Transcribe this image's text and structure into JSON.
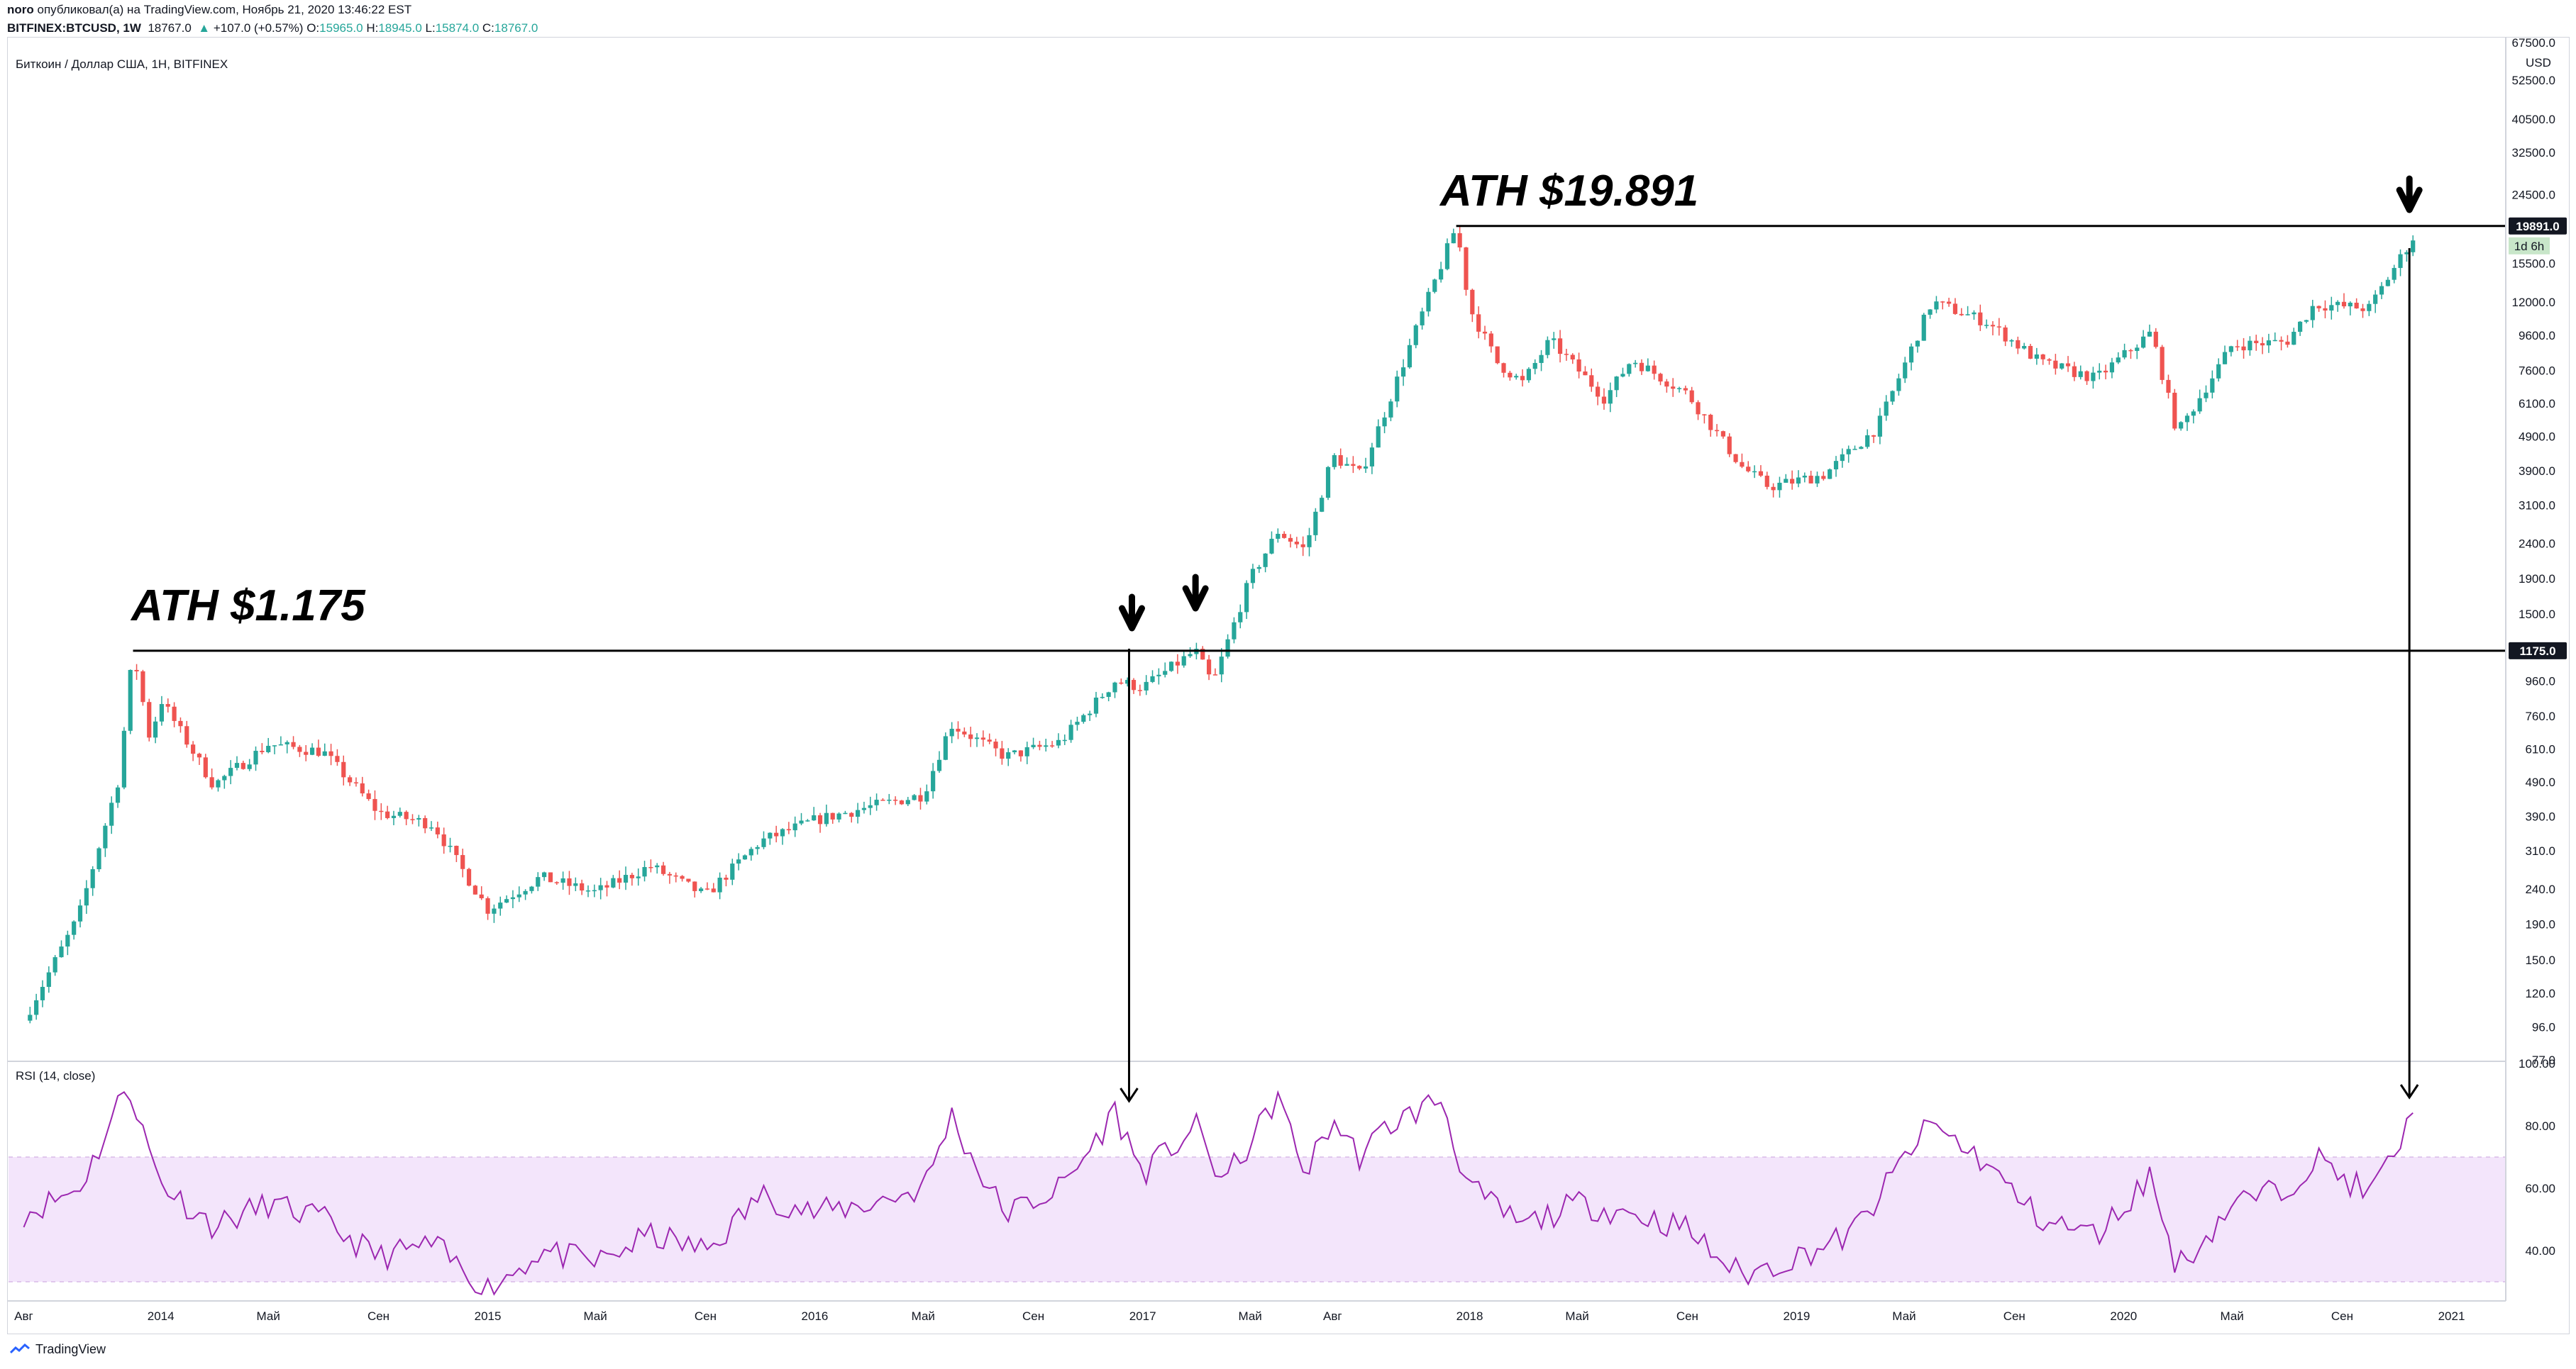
{
  "header": {
    "author": "noro",
    "published_text": "опубликовал(а) на TradingView.com, Ноябрь 21, 2020 13:46:22 EST",
    "symbol": "BITFINEX:BTCUSD, 1W",
    "last": "18767.0",
    "change": "+107.0 (+0.57%)",
    "o_label": "O:",
    "o": "15965.0",
    "h_label": "H:",
    "h": "18945.0",
    "l_label": "L:",
    "l": "15874.0",
    "c_label": "C:",
    "c": "18767.0"
  },
  "footer": {
    "logo_text": "TradingView"
  },
  "colors": {
    "up": "#26a69a",
    "down": "#ef5350",
    "rsi": "#9c27b0",
    "rsi_band": "#f3e5fb",
    "line": "#000000"
  },
  "chart_data": [
    {
      "type": "candlestick",
      "title": "Биткоин / Доллар США, 1Н, BITFINEX",
      "currency": "USD",
      "scale": "log",
      "ylim": [
        77,
        67500
      ],
      "price_ticks": [
        "67500.0",
        "52500.0",
        "40500.0",
        "32500.0",
        "24500.0",
        "15500.0",
        "12000.0",
        "9600.0",
        "7600.0",
        "6100.0",
        "4900.0",
        "3900.0",
        "3100.0",
        "2400.0",
        "1900.0",
        "1500.0",
        "960.0",
        "760.0",
        "610.0",
        "490.0",
        "390.0",
        "310.0",
        "240.0",
        "190.0",
        "150.0",
        "120.0",
        "96.0",
        "77.0"
      ],
      "x_ticks": [
        "Авг",
        "2014",
        "Май",
        "Сен",
        "2015",
        "Май",
        "Сен",
        "2016",
        "Май",
        "Сен",
        "2017",
        "Май",
        "Авг",
        "2018",
        "Май",
        "Сен",
        "2019",
        "Май",
        "Сен",
        "2020",
        "Май",
        "Сен",
        "2021"
      ],
      "anchors": [
        {
          "date": "2013-08",
          "close": 100
        },
        {
          "date": "2013-10",
          "close": 200
        },
        {
          "date": "2013-11-15",
          "close": 500
        },
        {
          "date": "2013-12-01",
          "close": 1175
        },
        {
          "date": "2013-12-20",
          "close": 650
        },
        {
          "date": "2014-01",
          "close": 850
        },
        {
          "date": "2014-03",
          "close": 480
        },
        {
          "date": "2014-05",
          "close": 630
        },
        {
          "date": "2014-07",
          "close": 600
        },
        {
          "date": "2014-09",
          "close": 400
        },
        {
          "date": "2014-11",
          "close": 370
        },
        {
          "date": "2015-01",
          "close": 210
        },
        {
          "date": "2015-03",
          "close": 260
        },
        {
          "date": "2015-05",
          "close": 235
        },
        {
          "date": "2015-07",
          "close": 280
        },
        {
          "date": "2015-09",
          "close": 230
        },
        {
          "date": "2015-11",
          "close": 330
        },
        {
          "date": "2016-01",
          "close": 380
        },
        {
          "date": "2016-03",
          "close": 415
        },
        {
          "date": "2016-05",
          "close": 450
        },
        {
          "date": "2016-06",
          "close": 720
        },
        {
          "date": "2016-08",
          "close": 580
        },
        {
          "date": "2016-10",
          "close": 640
        },
        {
          "date": "2016-12",
          "close": 960
        },
        {
          "date": "2017-01",
          "close": 920
        },
        {
          "date": "2017-03",
          "close": 1175
        },
        {
          "date": "2017-03-20",
          "close": 940
        },
        {
          "date": "2017-05",
          "close": 1900
        },
        {
          "date": "2017-06",
          "close": 2600
        },
        {
          "date": "2017-07",
          "close": 2300
        },
        {
          "date": "2017-08",
          "close": 4300
        },
        {
          "date": "2017-09",
          "close": 3800
        },
        {
          "date": "2017-10",
          "close": 6000
        },
        {
          "date": "2017-11",
          "close": 9800
        },
        {
          "date": "2017-12-17",
          "close": 19891
        },
        {
          "date": "2018-01",
          "close": 11500
        },
        {
          "date": "2018-02",
          "close": 8000
        },
        {
          "date": "2018-03",
          "close": 7000
        },
        {
          "date": "2018-04",
          "close": 9300
        },
        {
          "date": "2018-06",
          "close": 6300
        },
        {
          "date": "2018-07",
          "close": 8200
        },
        {
          "date": "2018-09",
          "close": 6500
        },
        {
          "date": "2018-11",
          "close": 4000
        },
        {
          "date": "2018-12",
          "close": 3500
        },
        {
          "date": "2019-02",
          "close": 3800
        },
        {
          "date": "2019-04",
          "close": 5200
        },
        {
          "date": "2019-06",
          "close": 12000
        },
        {
          "date": "2019-08",
          "close": 10500
        },
        {
          "date": "2019-10",
          "close": 8000
        },
        {
          "date": "2019-12",
          "close": 7200
        },
        {
          "date": "2020-02",
          "close": 9800
        },
        {
          "date": "2020-03",
          "close": 5000
        },
        {
          "date": "2020-05",
          "close": 9000
        },
        {
          "date": "2020-07",
          "close": 9200
        },
        {
          "date": "2020-08",
          "close": 11800
        },
        {
          "date": "2020-10",
          "close": 11500
        },
        {
          "date": "2020-11-21",
          "close": 18767
        }
      ],
      "levels": [
        {
          "label": "ATH $1.175",
          "value": 1175,
          "price_label": "1175.0"
        },
        {
          "label": "ATH $19.891",
          "value": 19891,
          "price_label": "19891.0"
        }
      ],
      "current_label": "1d 6h",
      "arrow_dates": [
        "2016-12-20",
        "2017-03-01",
        "2020-11-15"
      ]
    },
    {
      "type": "line",
      "title": "RSI (14, close)",
      "ylim": [
        25,
        100
      ],
      "band": [
        30,
        70
      ],
      "y_ticks": [
        "100.00",
        "80.00",
        "60.00",
        "40.00"
      ],
      "anchors": [
        {
          "date": "2013-08",
          "value": 52
        },
        {
          "date": "2013-10",
          "value": 60
        },
        {
          "date": "2013-11-25",
          "value": 95
        },
        {
          "date": "2014-01",
          "value": 62
        },
        {
          "date": "2014-03",
          "value": 48
        },
        {
          "date": "2014-05",
          "value": 55
        },
        {
          "date": "2014-07",
          "value": 50
        },
        {
          "date": "2014-09",
          "value": 38
        },
        {
          "date": "2014-11",
          "value": 42
        },
        {
          "date": "2015-01",
          "value": 28
        },
        {
          "date": "2015-03",
          "value": 40
        },
        {
          "date": "2015-05",
          "value": 36
        },
        {
          "date": "2015-07",
          "value": 45
        },
        {
          "date": "2015-09",
          "value": 40
        },
        {
          "date": "2015-11",
          "value": 58
        },
        {
          "date": "2016-01",
          "value": 52
        },
        {
          "date": "2016-03",
          "value": 55
        },
        {
          "date": "2016-05",
          "value": 60
        },
        {
          "date": "2016-06",
          "value": 84
        },
        {
          "date": "2016-08",
          "value": 52
        },
        {
          "date": "2016-10",
          "value": 60
        },
        {
          "date": "2016-12",
          "value": 85
        },
        {
          "date": "2017-01",
          "value": 65
        },
        {
          "date": "2017-03",
          "value": 80
        },
        {
          "date": "2017-04",
          "value": 62
        },
        {
          "date": "2017-06",
          "value": 90
        },
        {
          "date": "2017-07",
          "value": 65
        },
        {
          "date": "2017-08",
          "value": 82
        },
        {
          "date": "2017-09",
          "value": 70
        },
        {
          "date": "2017-10",
          "value": 80
        },
        {
          "date": "2017-12",
          "value": 89
        },
        {
          "date": "2018-01",
          "value": 60
        },
        {
          "date": "2018-03",
          "value": 48
        },
        {
          "date": "2018-05",
          "value": 55
        },
        {
          "date": "2018-07",
          "value": 52
        },
        {
          "date": "2018-09",
          "value": 47
        },
        {
          "date": "2018-11",
          "value": 32
        },
        {
          "date": "2019-01",
          "value": 38
        },
        {
          "date": "2019-03",
          "value": 45
        },
        {
          "date": "2019-05",
          "value": 70
        },
        {
          "date": "2019-06",
          "value": 81
        },
        {
          "date": "2019-08",
          "value": 68
        },
        {
          "date": "2019-10",
          "value": 50
        },
        {
          "date": "2019-12",
          "value": 45
        },
        {
          "date": "2020-02",
          "value": 65
        },
        {
          "date": "2020-03",
          "value": 35
        },
        {
          "date": "2020-05",
          "value": 55
        },
        {
          "date": "2020-07",
          "value": 60
        },
        {
          "date": "2020-08",
          "value": 70
        },
        {
          "date": "2020-10",
          "value": 58
        },
        {
          "date": "2020-11-21",
          "value": 84
        }
      ]
    }
  ]
}
